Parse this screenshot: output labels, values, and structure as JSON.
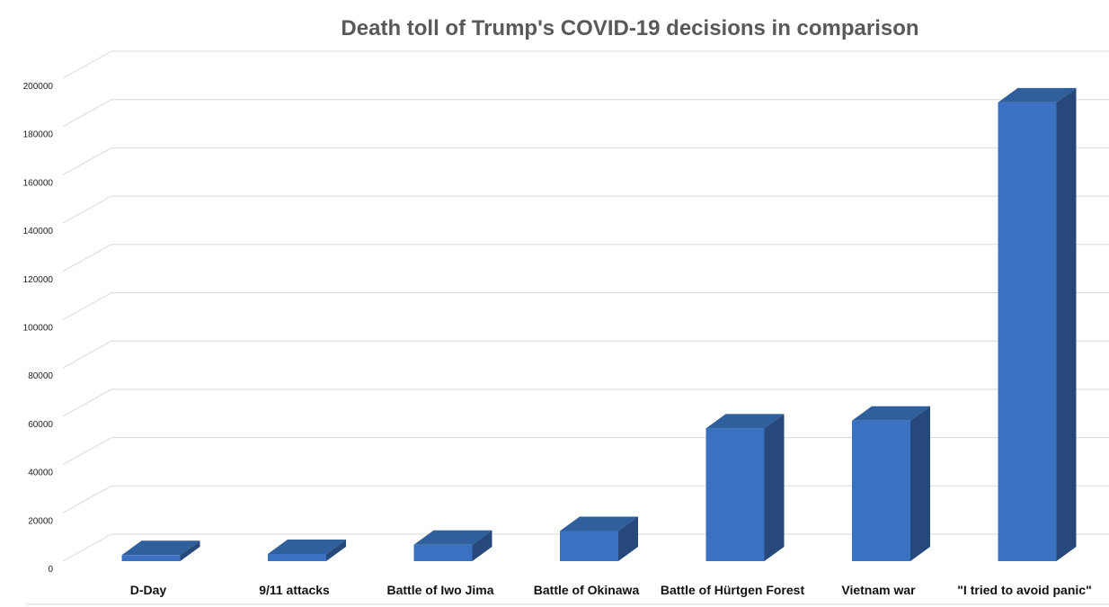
{
  "chart_data": {
    "type": "bar",
    "style": "3d-column",
    "title": "Death toll of Trump's COVID-19 decisions in comparison",
    "xlabel": "",
    "ylabel": "",
    "categories": [
      "D-Day",
      "9/11 attacks",
      "Battle of Iwo Jima",
      "Battle of Okinawa",
      "Battle of Hürtgen Forest",
      "Vietnam war",
      "\"I tried to avoid panic\""
    ],
    "values": [
      2500,
      2977,
      6800,
      12500,
      55000,
      58200,
      190000
    ],
    "ylim": [
      0,
      200000
    ],
    "yticks": [
      0,
      20000,
      40000,
      60000,
      80000,
      100000,
      120000,
      140000,
      160000,
      180000,
      200000
    ],
    "grid": true,
    "legend": "none",
    "colors": {
      "bar_front": "#3a72c1",
      "bar_top": "#2f5f9c",
      "bar_side": "#27487a",
      "title": "#595959",
      "grid": "#d9d9d9"
    }
  }
}
